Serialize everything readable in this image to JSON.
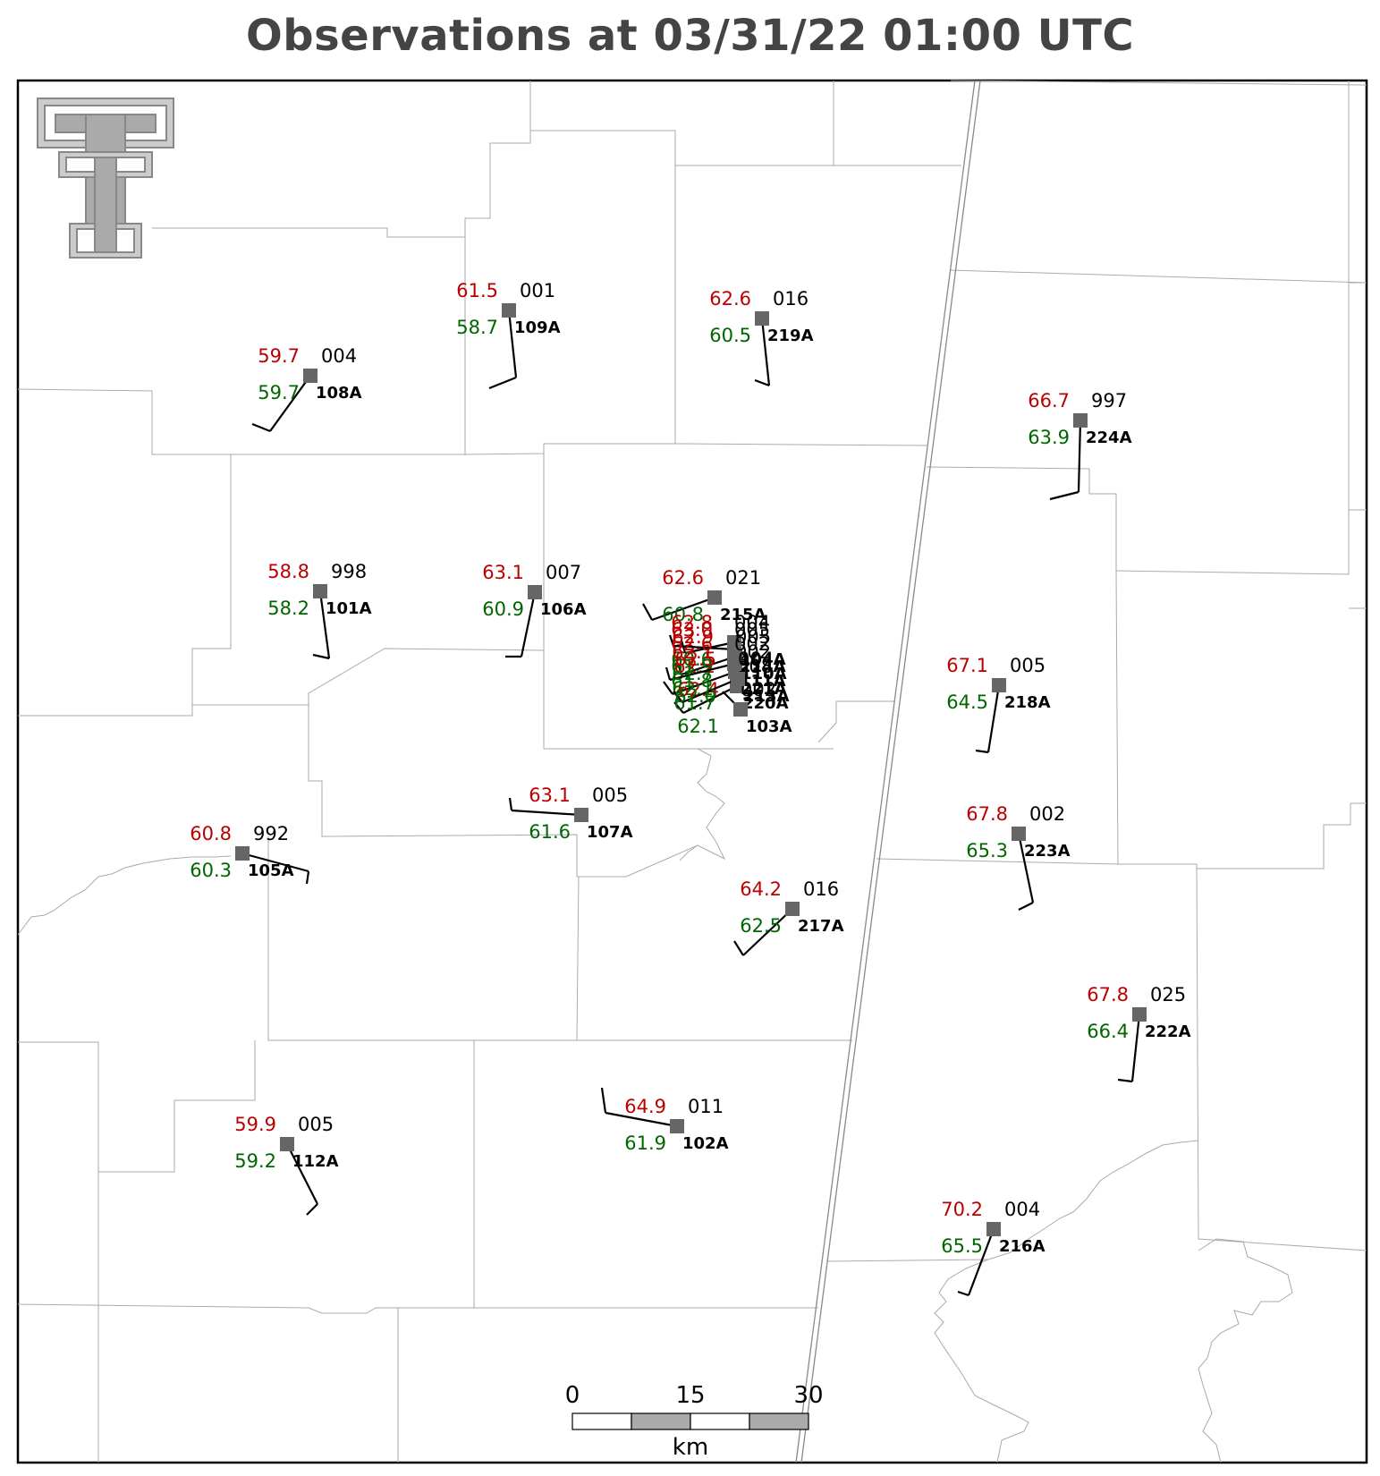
{
  "title": "Observations at 03/31/22 01:00 UTC",
  "colors": {
    "temperature": "#bb0000",
    "dewpoint": "#006600",
    "pressure": "#000000",
    "station_marker": "#666666",
    "county_lines": "#aaaaaa",
    "state_line": "#888888",
    "logo": "#aaaaaa"
  },
  "logo": {
    "icon": "double-t-logo-icon"
  },
  "stations": [
    {
      "id": "109A",
      "temp": "61.5",
      "dew": "58.7",
      "pres": "001"
    },
    {
      "id": "108A",
      "temp": "59.7",
      "dew": "59.7",
      "pres": "004"
    },
    {
      "id": "219A",
      "temp": "62.6",
      "dew": "60.5",
      "pres": "016"
    },
    {
      "id": "224A",
      "temp": "66.7",
      "dew": "63.9",
      "pres": "997"
    },
    {
      "id": "101A",
      "temp": "58.8",
      "dew": "58.2",
      "pres": "998"
    },
    {
      "id": "106A",
      "temp": "63.1",
      "dew": "60.9",
      "pres": "007"
    },
    {
      "id": "215A",
      "temp": "62.6",
      "dew": "60.8",
      "pres": "021"
    },
    {
      "id": "218A",
      "temp": "67.1",
      "dew": "64.5",
      "pres": "005"
    },
    {
      "id": "107A",
      "temp": "63.1",
      "dew": "61.6",
      "pres": "005"
    },
    {
      "id": "105A",
      "temp": "60.8",
      "dew": "60.3",
      "pres": "992"
    },
    {
      "id": "223A",
      "temp": "67.8",
      "dew": "65.3",
      "pres": "002"
    },
    {
      "id": "217A",
      "temp": "64.2",
      "dew": "62.5",
      "pres": "016"
    },
    {
      "id": "222A",
      "temp": "67.8",
      "dew": "66.4",
      "pres": "025"
    },
    {
      "id": "102A",
      "temp": "64.9",
      "dew": "61.9",
      "pres": "011"
    },
    {
      "id": "112A",
      "temp": "59.9",
      "dew": "59.2",
      "pres": "005"
    },
    {
      "id": "216A",
      "temp": "70.2",
      "dew": "65.5",
      "pres": "004"
    },
    {
      "id": "104A",
      "temp": "62.8",
      "dew": "60.6",
      "pres": "004"
    },
    {
      "id": "110A",
      "temp": "62.9",
      "dew": "62.7",
      "pres": "005"
    },
    {
      "id": "221A",
      "temp": "62.1",
      "dew": "62.1",
      "pres": "002"
    },
    {
      "id": "220A",
      "temp": "62.2",
      "dew": "61.7",
      "pres": "008"
    },
    {
      "id": "103A",
      "temp": "62.4",
      "dew": "62.1",
      "pres": "002"
    },
    {
      "id": "214A",
      "temp": "63.0",
      "dew": "61.9",
      "pres": "005"
    },
    {
      "id": "111A",
      "temp": "62.6",
      "dew": "61.8",
      "pres": "002"
    },
    {
      "id": "213A",
      "temp": "62.5",
      "dew": "62.0",
      "pres": "004"
    }
  ],
  "scale_bar": {
    "ticks": [
      "0",
      "15",
      "30"
    ],
    "unit": "km"
  }
}
